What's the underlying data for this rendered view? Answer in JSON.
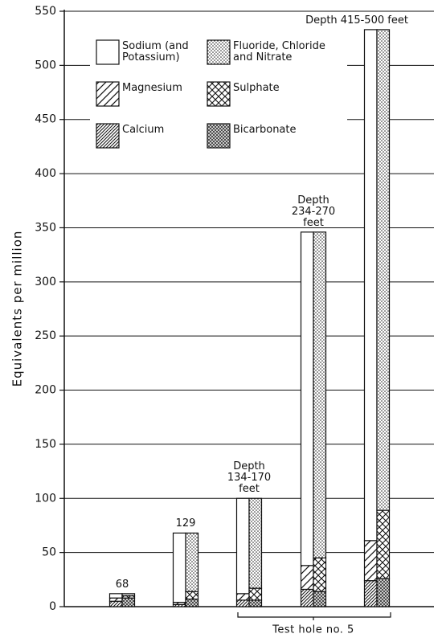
{
  "chart_data": {
    "type": "bar",
    "ylabel": "Equivalents per million",
    "categories": [
      "68",
      "129",
      "Depth 134-170 feet",
      "Depth 234-270 feet",
      "Depth 415-500 feet"
    ],
    "series": [
      {
        "name": "Sodium (and Potassium)",
        "values": [
          4,
          64,
          88,
          308,
          472
        ]
      },
      {
        "name": "Fluoride, Chloride and Nitrate",
        "values": [
          2,
          54,
          83,
          301,
          444
        ]
      },
      {
        "name": "Magnesium",
        "values": [
          3,
          2,
          6,
          22,
          37
        ]
      },
      {
        "name": "Sulphate",
        "values": [
          2,
          7,
          11,
          31,
          63
        ]
      },
      {
        "name": "Calcium",
        "values": [
          5,
          2,
          6,
          16,
          24
        ]
      },
      {
        "name": "Bicarbonate",
        "values": [
          8,
          7,
          6,
          14,
          26
        ]
      }
    ],
    "annotation": "Test hole no. 5",
    "ylim": [
      0,
      550
    ],
    "yticks": [
      0,
      50,
      100,
      150,
      200,
      250,
      300,
      350,
      400,
      450,
      500,
      550
    ],
    "grid": true
  }
}
